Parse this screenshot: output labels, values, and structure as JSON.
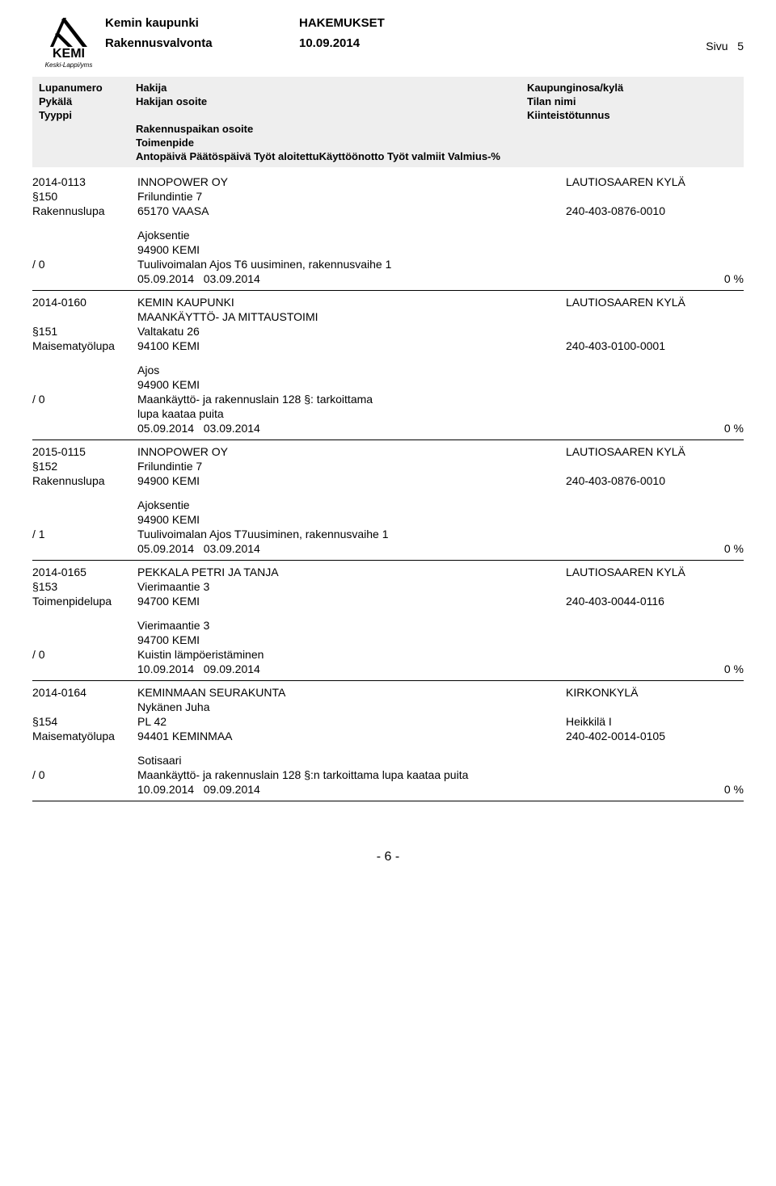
{
  "header": {
    "org": "Kemin kaupunki",
    "doc_title": "HAKEMUKSET",
    "dept": "Rakennusvalvonta",
    "date": "10.09.2014",
    "page_label": "Sivu",
    "page_num": "5",
    "logo_main": "KEMI",
    "logo_sub": "Keski-Lappi/yms"
  },
  "column_header": {
    "r1": {
      "left": "Lupanumero",
      "mid": "Hakija",
      "right": "Kaupunginosa/kylä"
    },
    "r2": {
      "left": "Pykälä",
      "mid": "Hakijan osoite",
      "right": "Tilan nimi"
    },
    "r3": {
      "left": "Tyyppi",
      "mid": "",
      "right": "Kiinteistötunnus"
    },
    "r4": {
      "left": "",
      "mid": "Rakennuspaikan osoite",
      "right": ""
    },
    "r5": {
      "left": "",
      "mid": "Toimenpide",
      "right": ""
    },
    "r6": {
      "left": "",
      "mid": "Antopäivä   Päätöspäivä Työt aloitettuKäyttöönotto Työt valmiit Valmius-%",
      "right": ""
    }
  },
  "entries": [
    {
      "num": "2014-0113",
      "applicant": "INNOPOWER OY",
      "area": "LAUTIOSAAREN KYLÄ",
      "pykala": "§150",
      "addr": "Frilundintie 7",
      "tila": "",
      "tyyppi": "Rakennuslupa",
      "addr2": "65170  VAASA",
      "kiint": "240-403-0876-0010",
      "site1": "Ajoksentie",
      "site2": "94900 KEMI",
      "slash": "/ 0",
      "desc": "Tuulivoimalan Ajos T6 uusiminen, rakennusvaihe 1",
      "d1": "05.09.2014",
      "d2": "03.09.2014",
      "pct": "0 %"
    },
    {
      "num": "2014-0160",
      "applicant": "KEMIN KAUPUNKI",
      "area": "LAUTIOSAAREN KYLÄ",
      "applicant2": "MAANKÄYTTÖ- JA MITTAUSTOIMI",
      "pykala": "§151",
      "addr": "Valtakatu 26",
      "tila": "",
      "tyyppi": "Maisematyölupa",
      "addr2": "94100  KEMI",
      "kiint": "240-403-0100-0001",
      "site1": "Ajos",
      "site2": "94900 KEMI",
      "slash": "/ 0",
      "desc": "Maankäyttö- ja rakennuslain 128 §: tarkoittama",
      "desc2": "lupa kaataa puita",
      "d1": "05.09.2014",
      "d2": "03.09.2014",
      "pct": "0 %"
    },
    {
      "num": "2015-0115",
      "applicant": "INNOPOWER OY",
      "area": "LAUTIOSAAREN KYLÄ",
      "pykala": "§152",
      "addr": "Frilundintie 7",
      "tila": "",
      "tyyppi": "Rakennuslupa",
      "addr2": "94900  KEMI",
      "kiint": "240-403-0876-0010",
      "site1": "Ajoksentie",
      "site2": "94900 KEMI",
      "slash": "/ 1",
      "desc": "Tuulivoimalan Ajos T7uusiminen, rakennusvaihe 1",
      "d1": "05.09.2014",
      "d2": "03.09.2014",
      "pct": "0 %"
    },
    {
      "num": "2014-0165",
      "applicant": "PEKKALA PETRI JA TANJA",
      "area": "LAUTIOSAAREN KYLÄ",
      "pykala": "§153",
      "addr": "Vierimaantie 3",
      "tila": "",
      "tyyppi": "Toimenpidelupa",
      "addr2": "94700  KEMI",
      "kiint": "240-403-0044-0116",
      "site1": "Vierimaantie 3",
      "site2": "94700 KEMI",
      "slash": "/ 0",
      "desc": "Kuistin lämpöeristäminen",
      "d1": "10.09.2014",
      "d2": "09.09.2014",
      "pct": "0 %"
    },
    {
      "num": "2014-0164",
      "applicant": "KEMINMAAN SEURAKUNTA",
      "area": "KIRKONKYLÄ",
      "applicant2": "Nykänen Juha",
      "pykala": "§154",
      "addr": "PL 42",
      "tila": "Heikkilä I",
      "tyyppi": "Maisematyölupa",
      "addr2": "94401  KEMINMAA",
      "kiint": "240-402-0014-0105",
      "site1": "Sotisaari",
      "site2": "",
      "slash": "/ 0",
      "desc": "Maankäyttö- ja rakennuslain 128 §:n tarkoittama lupa kaataa puita",
      "d1": "10.09.2014",
      "d2": "09.09.2014",
      "pct": "0 %"
    }
  ],
  "footer": "- 6 -"
}
